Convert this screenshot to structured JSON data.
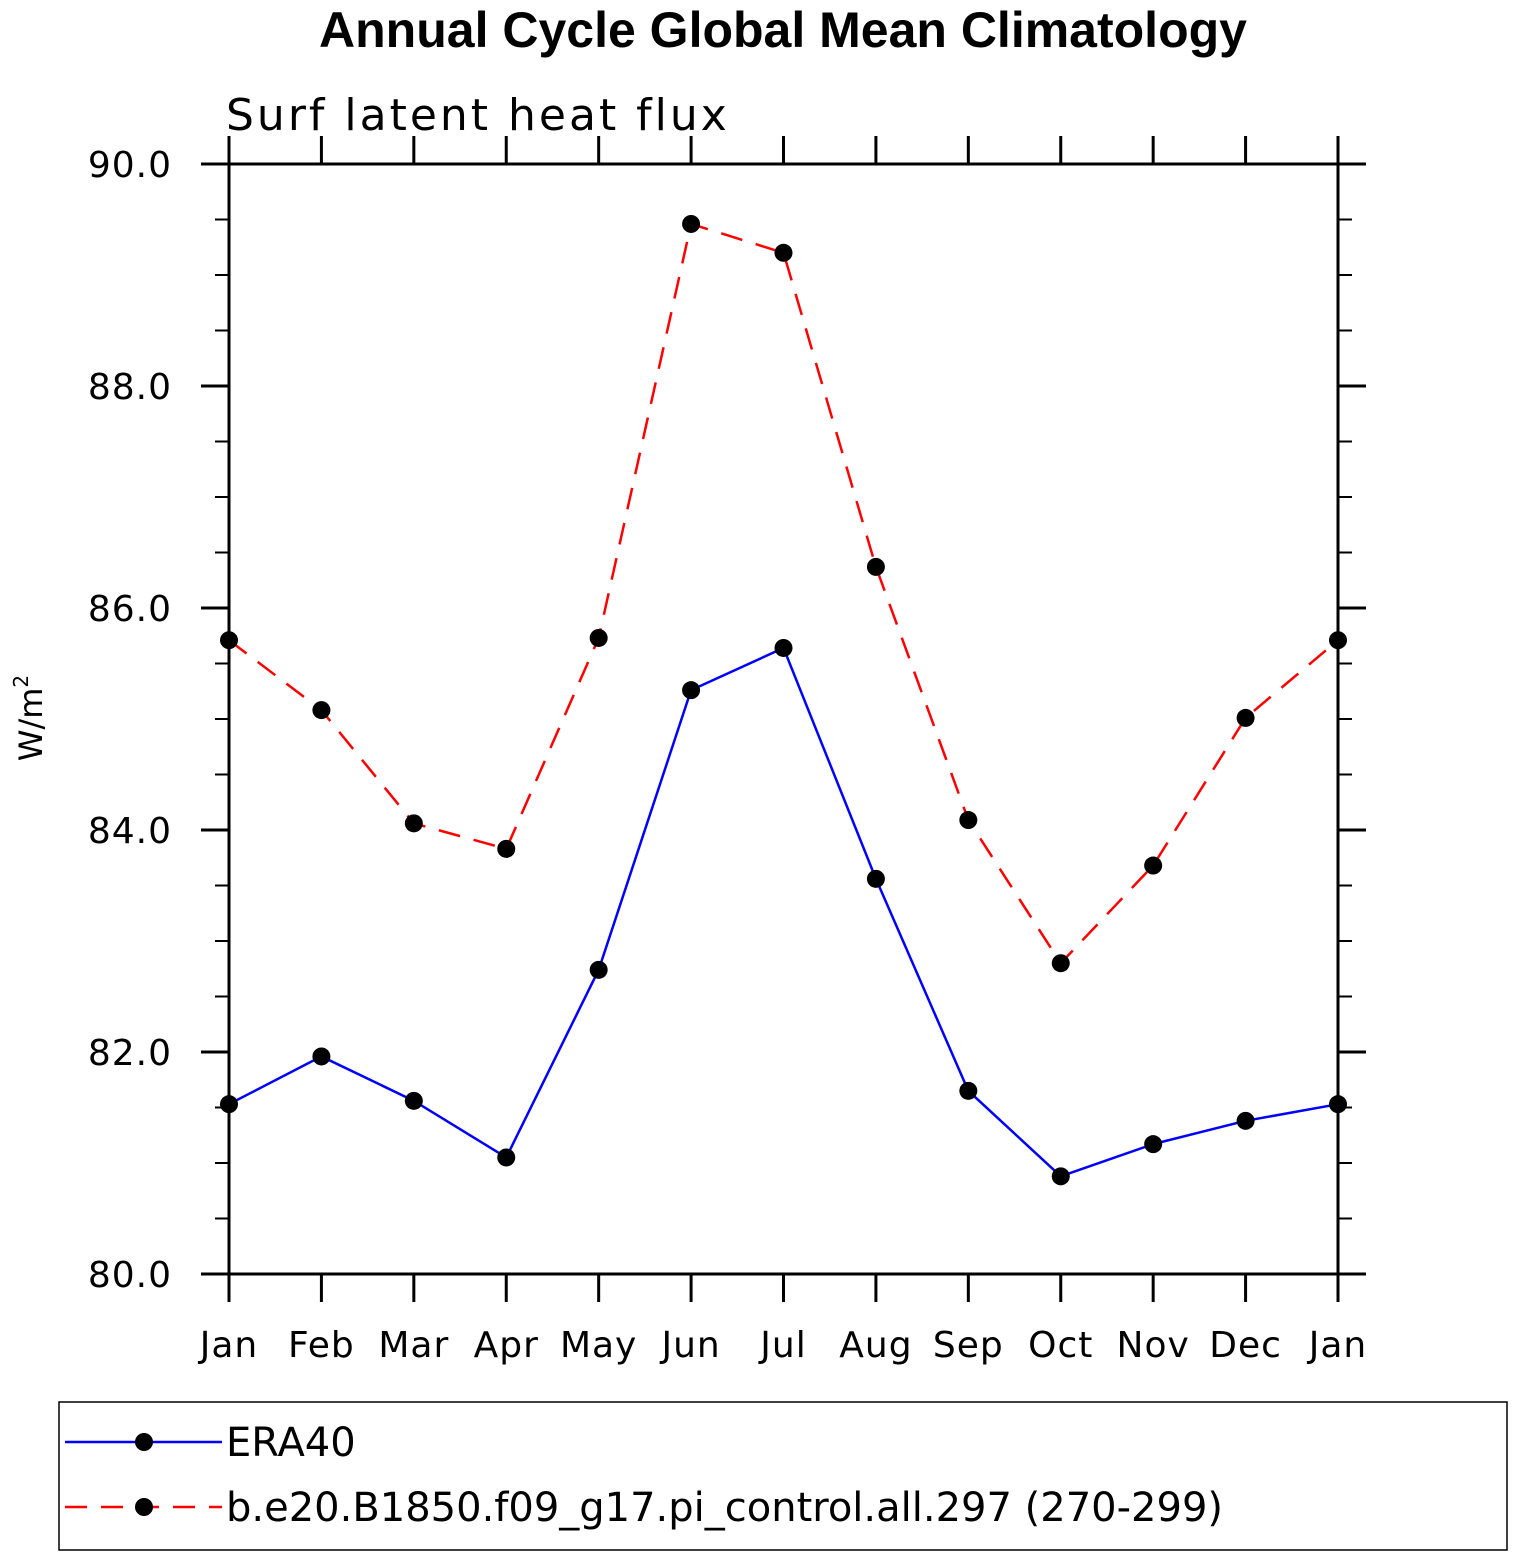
{
  "chart_data": {
    "type": "line",
    "title": "Annual Cycle Global Mean Climatology",
    "subtitle": "Surf latent heat flux",
    "ylabel": "W/m",
    "ylabel_superscript": "2",
    "ylim": [
      80.0,
      90.0
    ],
    "yticks": [
      "80.0",
      "82.0",
      "84.0",
      "86.0",
      "88.0",
      "90.0"
    ],
    "categories": [
      "Jan",
      "Feb",
      "Mar",
      "Apr",
      "May",
      "Jun",
      "Jul",
      "Aug",
      "Sep",
      "Oct",
      "Nov",
      "Dec",
      "Jan"
    ],
    "series": [
      {
        "name": "ERA40",
        "color": "#0000ff",
        "dash": "solid",
        "values": [
          81.53,
          81.96,
          81.56,
          81.05,
          82.74,
          85.26,
          85.64,
          83.56,
          81.65,
          80.88,
          81.17,
          81.38,
          81.53
        ]
      },
      {
        "name": "b.e20.B1850.f09_g17.pi_control.all.297 (270-299)",
        "color": "#ff0000",
        "dash": "dashed",
        "values": [
          85.71,
          85.08,
          84.06,
          83.83,
          85.73,
          89.46,
          89.2,
          86.37,
          84.09,
          82.8,
          83.68,
          85.01,
          85.71
        ]
      }
    ],
    "marker": "filled-circle",
    "grid": false,
    "legend_position": "bottom"
  }
}
